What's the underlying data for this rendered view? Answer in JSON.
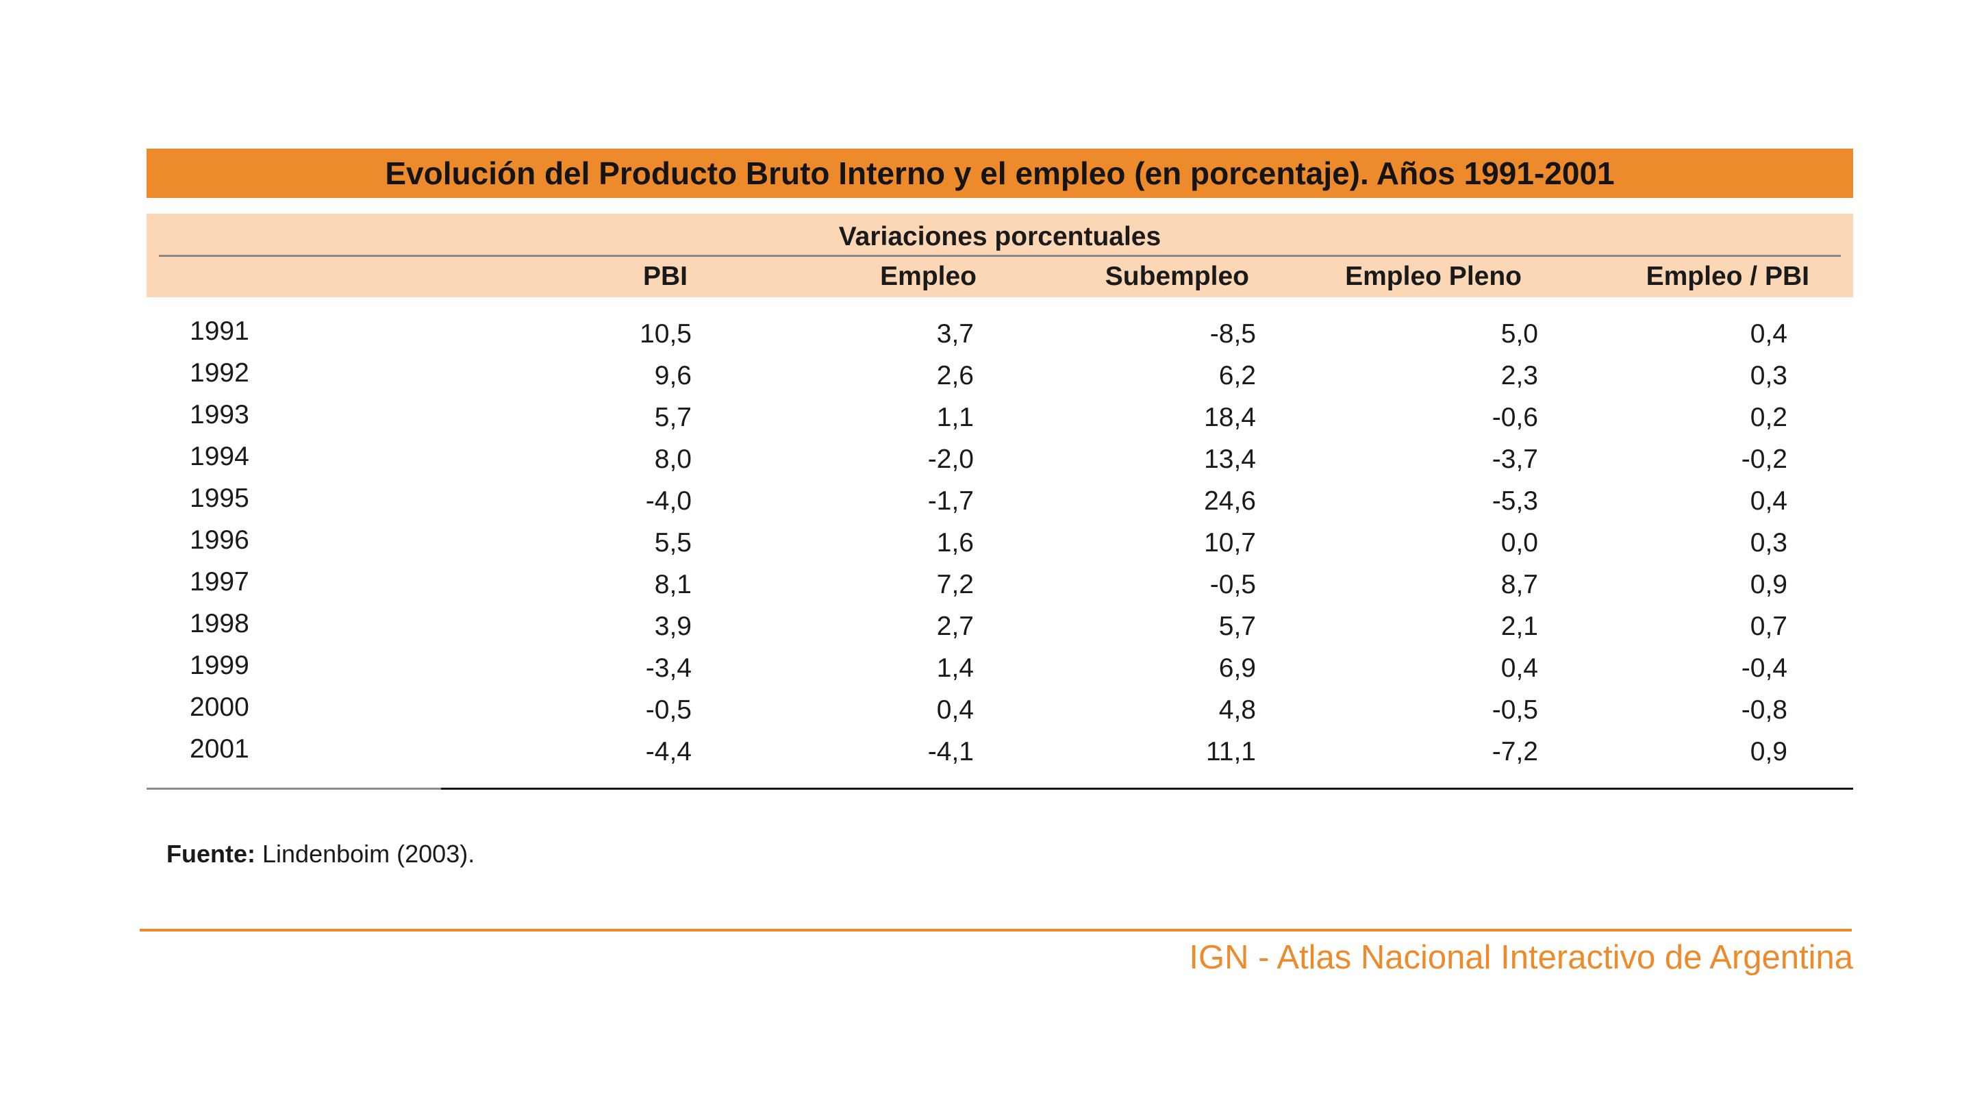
{
  "title": "Evolución del Producto Bruto Interno y el empleo (en porcentaje). Años 1991-2001",
  "subtitle": "Variaciones porcentuales",
  "columns": [
    "PBI",
    "Empleo",
    "Subempleo",
    "Empleo Pleno",
    "Empleo / PBI"
  ],
  "rows": [
    {
      "year": "1991",
      "values": [
        "10,5",
        "3,7",
        "-8,5",
        "5,0",
        "0,4"
      ]
    },
    {
      "year": "1992",
      "values": [
        "9,6",
        "2,6",
        "6,2",
        "2,3",
        "0,3"
      ]
    },
    {
      "year": "1993",
      "values": [
        "5,7",
        "1,1",
        "18,4",
        "-0,6",
        "0,2"
      ]
    },
    {
      "year": "1994",
      "values": [
        "8,0",
        "-2,0",
        "13,4",
        "-3,7",
        "-0,2"
      ]
    },
    {
      "year": "1995",
      "values": [
        "-4,0",
        "-1,7",
        "24,6",
        "-5,3",
        "0,4"
      ]
    },
    {
      "year": "1996",
      "values": [
        "5,5",
        "1,6",
        "10,7",
        "0,0",
        "0,3"
      ]
    },
    {
      "year": "1997",
      "values": [
        "8,1",
        "7,2",
        "-0,5",
        "8,7",
        "0,9"
      ]
    },
    {
      "year": "1998",
      "values": [
        "3,9",
        "2,7",
        "5,7",
        "2,1",
        "0,7"
      ]
    },
    {
      "year": "1999",
      "values": [
        "-3,4",
        "1,4",
        "6,9",
        "0,4",
        "-0,4"
      ]
    },
    {
      "year": "2000",
      "values": [
        "-0,5",
        "0,4",
        "4,8",
        "-0,5",
        "-0,8"
      ]
    },
    {
      "year": "2001",
      "values": [
        "-4,4",
        "-4,1",
        "11,1",
        "-7,2",
        "0,9"
      ]
    }
  ],
  "source": {
    "label": "Fuente:",
    "text": "Lindenboim (2003)."
  },
  "footer": "IGN - Atlas Nacional Interactivo de Argentina",
  "colors": {
    "accent": "#ec8a2c",
    "header_band": "#fcd7b6"
  }
}
